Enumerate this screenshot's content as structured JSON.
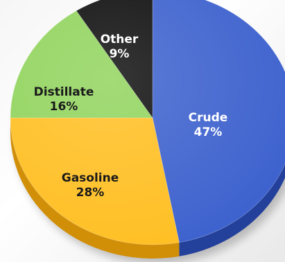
{
  "chart_data": {
    "type": "pie",
    "title": "",
    "slices": [
      {
        "label": "Crude",
        "value": 47,
        "value_label": "47%",
        "color": "#3a5fcd",
        "side_color": "#23409a",
        "text_color": "#ffffff"
      },
      {
        "label": "Gasoline",
        "value": 28,
        "value_label": "28%",
        "color": "#ffbe1f",
        "side_color": "#d18f08",
        "text_color": "#1a1a1a"
      },
      {
        "label": "Distillate",
        "value": 16,
        "value_label": "16%",
        "color": "#8fd35a",
        "side_color": "#5f9c34",
        "text_color": "#1a1a1a"
      },
      {
        "label": "Other",
        "value": 9,
        "value_label": "9%",
        "color": "#0a0a0a",
        "side_color": "#000000",
        "text_color": "#ffffff"
      }
    ],
    "style": "3d-tilted"
  }
}
